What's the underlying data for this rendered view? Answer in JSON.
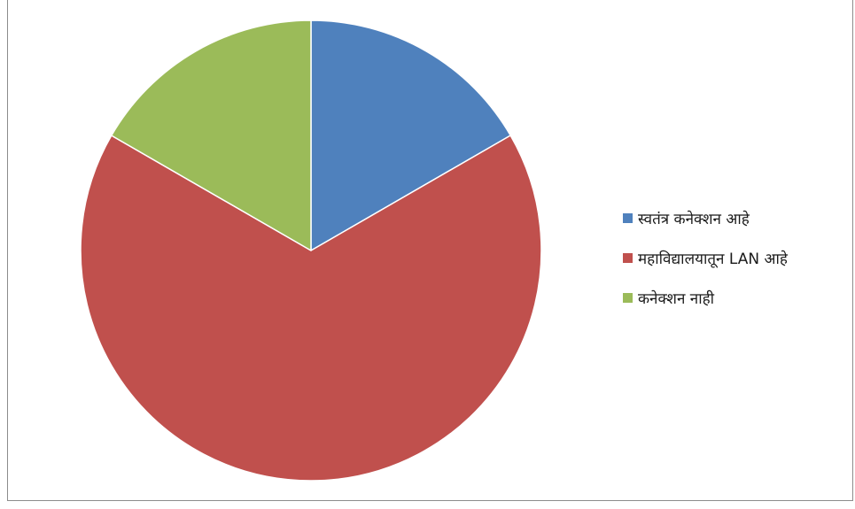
{
  "chart_data": {
    "type": "pie",
    "title": "",
    "categories": [
      "स्वतंत्र कनेक्शन आहे",
      "महाविद्यालयातून LAN आहे",
      "कनेक्शन नाही"
    ],
    "values": [
      16.67,
      66.67,
      16.67
    ],
    "colors": [
      "#4f81bd",
      "#c0504d",
      "#9bbb59"
    ],
    "slice_border_color": "#ffffff",
    "start_direction": "top",
    "order": "clockwise",
    "legend_position": "right"
  },
  "legend": {
    "items": [
      {
        "label": "स्वतंत्र कनेक्शन आहे",
        "color": "#4f81bd"
      },
      {
        "label": "महाविद्यालयातून LAN आहे",
        "color": "#c0504d"
      },
      {
        "label": "कनेक्शन नाही",
        "color": "#9bbb59"
      }
    ]
  }
}
